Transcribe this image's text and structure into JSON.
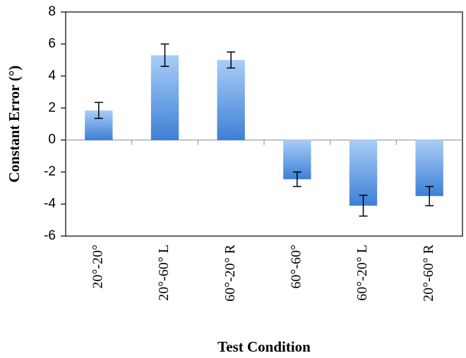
{
  "chart_data": {
    "type": "bar",
    "x_label": "Test Condition",
    "y_label": "Constant Error (°)",
    "categories": [
      "20°-20°",
      "20°-60° L",
      "60°-20° R",
      "60°-60°",
      "60°-20° L",
      "20°-60° R"
    ],
    "values": [
      1.85,
      5.3,
      5.0,
      -2.45,
      -4.1,
      -3.5
    ],
    "errors": [
      0.5,
      0.7,
      0.5,
      0.45,
      0.65,
      0.6
    ],
    "color": "#4a8be0",
    "ylim": [
      -6,
      8
    ],
    "yticks": [
      -6,
      -4,
      -2,
      0,
      2,
      4,
      6,
      8
    ],
    "grid": false
  }
}
